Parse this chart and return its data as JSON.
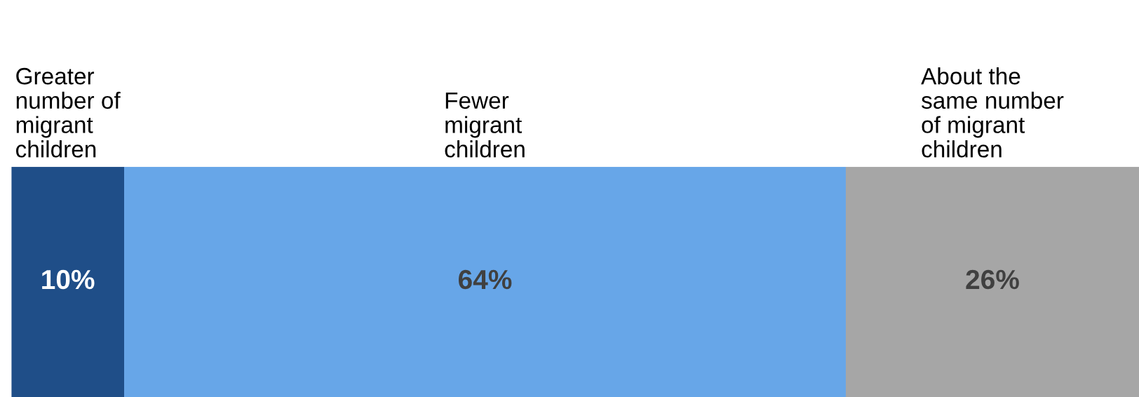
{
  "chart_data": {
    "type": "bar",
    "orientation": "horizontal",
    "stacked": true,
    "categories": [
      null
    ],
    "xlim": [
      0,
      100
    ],
    "grid": false,
    "legend": false,
    "series": [
      {
        "name": "Greater\nnumber of\nmigrant\nchildren",
        "color": "#1f4e88",
        "values": [
          10
        ],
        "value_labels": [
          "10%"
        ]
      },
      {
        "name": "Fewer\nmigrant\nchildren",
        "color": "#67a6e8",
        "values": [
          64
        ],
        "value_labels": [
          "64%"
        ]
      },
      {
        "name": "About the\nsame number\nof migrant\nchildren",
        "color": "#a6a6a6",
        "values": [
          26
        ],
        "value_labels": [
          "26%"
        ]
      }
    ]
  }
}
